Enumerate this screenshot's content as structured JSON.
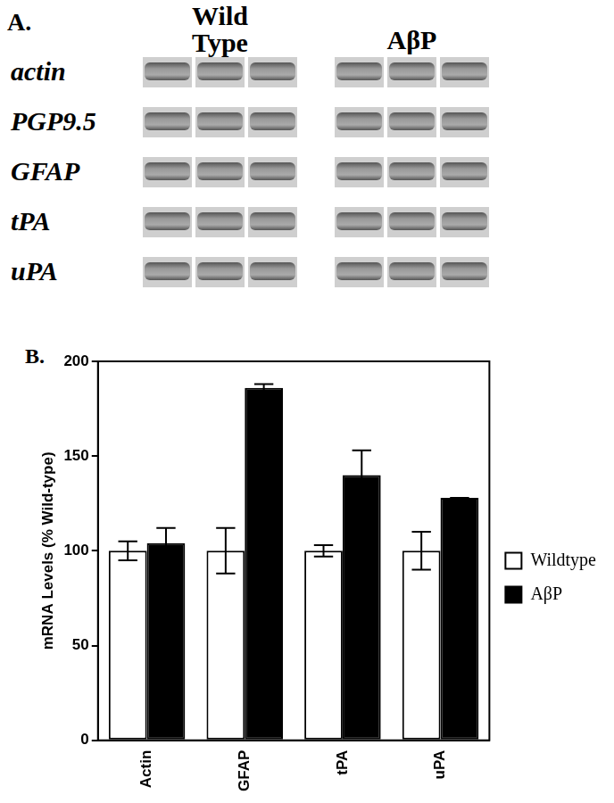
{
  "gel": {
    "panel_label": "A.",
    "groups": [
      "Wild Type",
      "AβP"
    ],
    "rows": [
      "actin",
      "PGP9.5",
      "GFAP",
      "tPA",
      "uPA"
    ]
  },
  "chart_data": {
    "type": "bar",
    "annotations": [
      "B."
    ],
    "y_label": "mRNA Levels (% Wild-type)",
    "categories": [
      "Actin",
      "GFAP",
      "tPA",
      "uPA"
    ],
    "series": [
      {
        "name": "Wildtype",
        "color": "#ffffff",
        "values": [
          100,
          100,
          100,
          100
        ],
        "errors": [
          5,
          12,
          3,
          10
        ]
      },
      {
        "name": "AβP",
        "color": "#000000",
        "values": [
          104,
          186,
          140,
          128
        ],
        "errors": [
          8,
          2,
          13,
          0
        ]
      }
    ],
    "ylim": [
      0,
      200
    ],
    "yticks": [
      0,
      50,
      100,
      150,
      200
    ],
    "grid": false,
    "legend": "right"
  }
}
